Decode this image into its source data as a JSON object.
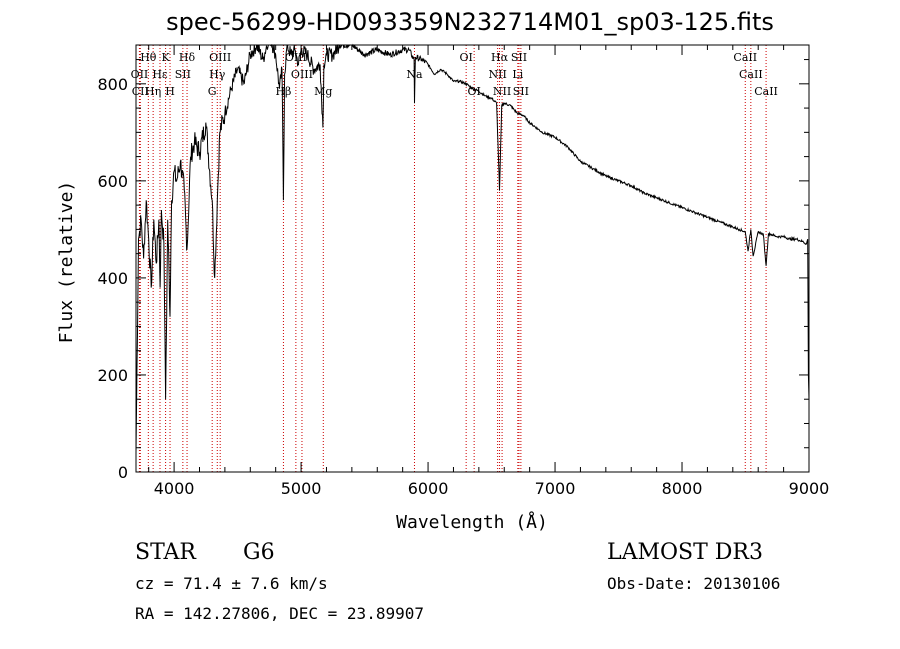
{
  "chart_data": {
    "type": "line",
    "title": "spec-56299-HD093359N232714M01_sp03-125.fits",
    "xlabel": "Wavelength (Å)",
    "ylabel": "Flux (relative)",
    "xlim": [
      3700,
      9000
    ],
    "ylim": [
      0,
      880
    ],
    "xticks": [
      4000,
      5000,
      6000,
      7000,
      8000,
      9000
    ],
    "yticks": [
      0,
      200,
      400,
      600,
      800
    ],
    "spectrum": {
      "x": [
        3700,
        3720,
        3740,
        3760,
        3780,
        3800,
        3820,
        3840,
        3860,
        3880,
        3890,
        3900,
        3920,
        3933,
        3950,
        3968,
        3980,
        4000,
        4020,
        4050,
        4080,
        4102,
        4130,
        4160,
        4200,
        4250,
        4300,
        4320,
        4340,
        4360,
        4400,
        4450,
        4500,
        4550,
        4600,
        4650,
        4700,
        4750,
        4800,
        4830,
        4850,
        4861,
        4870,
        4890,
        4920,
        4950,
        4980,
        5000,
        5050,
        5100,
        5150,
        5172,
        5180,
        5200,
        5250,
        5300,
        5400,
        5500,
        5600,
        5700,
        5800,
        5850,
        5890,
        5893,
        5900,
        5950,
        6000,
        6050,
        6100,
        6150,
        6200,
        6250,
        6300,
        6350,
        6400,
        6450,
        6500,
        6540,
        6563,
        6580,
        6600,
        6650,
        6700,
        6750,
        6800,
        6900,
        7000,
        7100,
        7200,
        7300,
        7400,
        7500,
        7600,
        7700,
        7800,
        7900,
        8000,
        8100,
        8200,
        8300,
        8400,
        8450,
        8498,
        8520,
        8542,
        8560,
        8600,
        8640,
        8662,
        8680,
        8700,
        8750,
        8800,
        8850,
        8900,
        8950,
        8980,
        8990,
        8995,
        9000
      ],
      "y": [
        40,
        480,
        520,
        440,
        560,
        480,
        380,
        520,
        430,
        520,
        380,
        540,
        470,
        150,
        520,
        320,
        560,
        620,
        600,
        640,
        580,
        460,
        650,
        680,
        660,
        720,
        560,
        400,
        560,
        700,
        740,
        790,
        830,
        800,
        860,
        880,
        850,
        900,
        860,
        790,
        830,
        560,
        820,
        880,
        860,
        870,
        840,
        870,
        860,
        830,
        840,
        710,
        840,
        860,
        860,
        880,
        880,
        860,
        870,
        860,
        870,
        870,
        850,
        760,
        855,
        850,
        840,
        820,
        830,
        820,
        805,
        805,
        800,
        790,
        785,
        775,
        770,
        760,
        580,
        755,
        760,
        755,
        740,
        735,
        720,
        700,
        690,
        670,
        640,
        625,
        610,
        600,
        590,
        575,
        565,
        555,
        545,
        535,
        525,
        515,
        505,
        500,
        495,
        455,
        500,
        445,
        495,
        490,
        425,
        490,
        490,
        485,
        485,
        480,
        480,
        475,
        470,
        480,
        200,
        150
      ]
    },
    "lines": [
      {
        "label": "Hθ",
        "x": 3797,
        "row": 1
      },
      {
        "label": "OII",
        "x": 3727,
        "row": 2
      },
      {
        "label": "CII",
        "x": 3734,
        "row": 3
      },
      {
        "label": "Hε",
        "x": 3889,
        "row": 2
      },
      {
        "label": "Hη",
        "x": 3835,
        "row": 3
      },
      {
        "label": "K",
        "x": 3933,
        "row": 1
      },
      {
        "label": "H",
        "x": 3968,
        "row": 3
      },
      {
        "label": "SII",
        "x": 4069,
        "row": 2
      },
      {
        "label": "Hδ",
        "x": 4102,
        "row": 1
      },
      {
        "label": "OIII",
        "x": 4363,
        "row": 1
      },
      {
        "label": "Hγ",
        "x": 4340,
        "row": 2
      },
      {
        "label": "G",
        "x": 4300,
        "row": 3
      },
      {
        "label": "OIII",
        "x": 4959,
        "row": 1
      },
      {
        "label": "OIII",
        "x": 5007,
        "row": 2
      },
      {
        "label": "Hβ",
        "x": 4861,
        "row": 3
      },
      {
        "label": "Mg",
        "x": 5175,
        "row": 3
      },
      {
        "label": "Na",
        "x": 5893,
        "row": 2
      },
      {
        "label": "OI",
        "x": 6300,
        "row": 1
      },
      {
        "label": "OI",
        "x": 6363,
        "row": 3
      },
      {
        "label": "Hα",
        "x": 6563,
        "row": 1
      },
      {
        "label": "SII",
        "x": 6716,
        "row": 1
      },
      {
        "label": "NII",
        "x": 6548,
        "row": 2
      },
      {
        "label": "Li",
        "x": 6707,
        "row": 2
      },
      {
        "label": "NII",
        "x": 6583,
        "row": 3
      },
      {
        "label": "SII",
        "x": 6731,
        "row": 3
      },
      {
        "label": "CaII",
        "x": 8498,
        "row": 1
      },
      {
        "label": "CaII",
        "x": 8542,
        "row": 2
      },
      {
        "label": "CaII",
        "x": 8662,
        "row": 3
      }
    ]
  },
  "info": {
    "object_class": "STAR",
    "subclass": "G6",
    "survey": "LAMOST DR3",
    "cz": "cz = 71.4 ± 7.6 km/s",
    "obs_date": "Obs-Date: 20130106",
    "coords": "RA = 142.27806, DEC =  23.89907"
  },
  "colors": {
    "line_marker": "#cc0000",
    "spectrum": "#000000"
  }
}
